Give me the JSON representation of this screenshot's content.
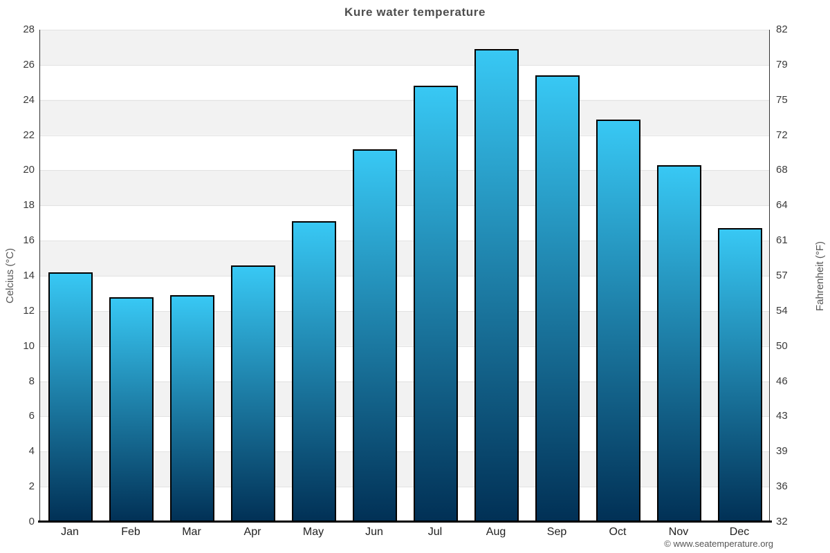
{
  "title": "Kure water temperature",
  "copyright": "© www.seatemperature.org",
  "chart_data": {
    "type": "bar",
    "title": "Kure water temperature",
    "categories": [
      "Jan",
      "Feb",
      "Mar",
      "Apr",
      "May",
      "Jun",
      "Jul",
      "Aug",
      "Sep",
      "Oct",
      "Nov",
      "Dec"
    ],
    "values": [
      14.2,
      12.8,
      12.9,
      14.6,
      17.1,
      21.2,
      24.8,
      26.9,
      25.4,
      22.9,
      20.3,
      16.7
    ],
    "xlabel": "",
    "ylabel_left": "Celcius (°C)",
    "ylabel_right": "Fahrenheit (°F)",
    "ylim": [
      0,
      28
    ],
    "ytick_step": 2,
    "yticks_left": [
      28,
      26,
      24,
      22,
      20,
      18,
      16,
      14,
      12,
      10,
      8,
      6,
      4,
      2,
      0
    ],
    "yticks_right": [
      82,
      79,
      75,
      72,
      68,
      64,
      61,
      57,
      54,
      50,
      46,
      43,
      39,
      36,
      32
    ],
    "grid": true,
    "legend": "none",
    "band_color": "#f2f2f2",
    "band_alt_color": "#ffffff",
    "gridline_color": "#e2e2e2",
    "bar_gradient_top": "#38c8f4",
    "bar_gradient_bottom": "#013055",
    "bar_border_color": "#000000",
    "axis_line_color": "#333333",
    "baseline_color": "#000000"
  }
}
